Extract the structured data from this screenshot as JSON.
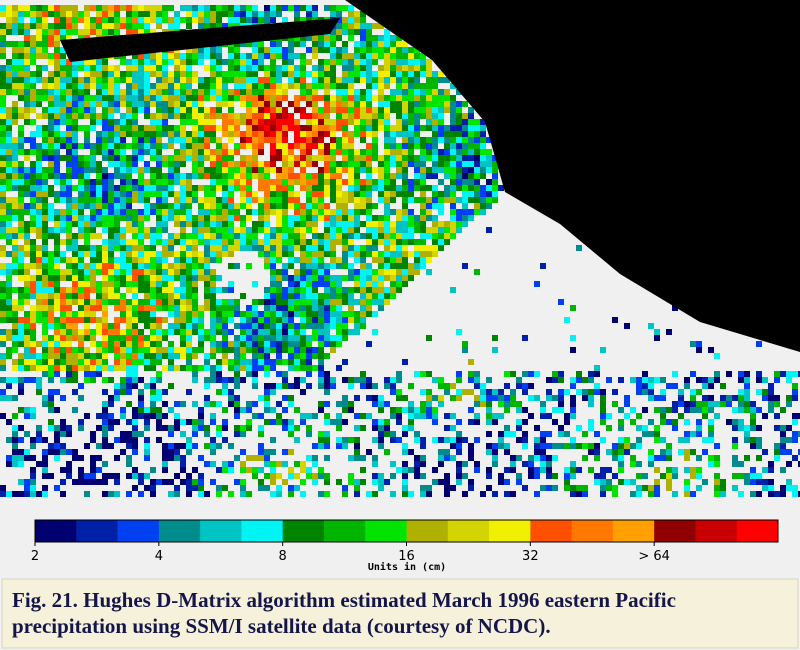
{
  "colorbar": {
    "colors": [
      "#000070",
      "#0020a8",
      "#0040f0",
      "#008c8c",
      "#00c4c4",
      "#00f4f4",
      "#008400",
      "#00b400",
      "#00e400",
      "#b0b000",
      "#d4d400",
      "#f0f000",
      "#ff5000",
      "#ff7800",
      "#ffa000",
      "#900000",
      "#c80000",
      "#ff0000"
    ],
    "ticks": [
      "2",
      "4",
      "8",
      "16",
      "32",
      "> 64"
    ],
    "units": "Units in (cm)"
  },
  "caption": {
    "lines": [
      "Fig. 21.  Hughes D-Matrix algorithm estimated March 1996 eastern Pacific",
      "precipitation using SSM/I satellite data (courtesy of NCDC)."
    ]
  }
}
